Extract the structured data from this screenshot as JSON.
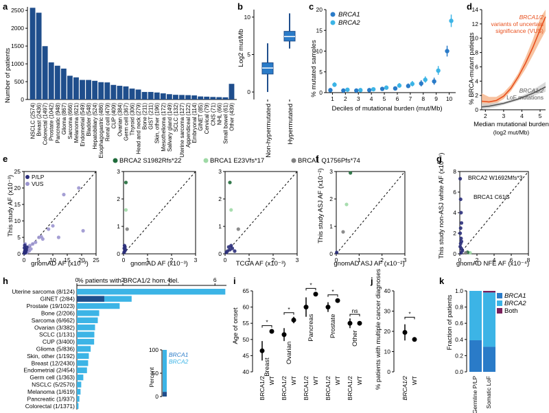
{
  "colors": {
    "dark": "#1f4e8c",
    "mid": "#2a7bc8",
    "light": "#3cb4e6",
    "orange": "#e8501e",
    "orange_band": "#f6b489",
    "gray": "#555555",
    "gray_band": "#d0d0d0",
    "purple": "#7a1f5c",
    "vus": "#9b95cf",
    "plp": "#2a2e7a",
    "green_dark": "#1f6b3a",
    "green_light": "#9fd9a6",
    "gray_dot": "#808080"
  },
  "chart_data": [
    {
      "panel": "a",
      "type": "bar",
      "ylabel": "Number of patients",
      "ylim": [
        0,
        2500
      ],
      "yticks": [
        0,
        500,
        1000,
        1500,
        2000,
        2500
      ],
      "categories": [
        "NSCLC (2574)",
        "Breast (2436)",
        "Colorectal (1497)",
        "Prostate (1042)",
        "Pancreatic (948)",
        "Glioma (867)",
        "Sarcoma (666)",
        "Melanoma (621)",
        "Endometrial (549)",
        "Bladder (548)",
        "Hepatobiliary (524)",
        "Esophagogastric (486)",
        "Renal cell (479)",
        "CUP (409)",
        "Ovarian (384)",
        "Germ cell (367)",
        "Thyroid (306)",
        "Head and neck (279)",
        "Bone (211)",
        "GIST (211)",
        "Skin, other (196)",
        "Mesothelioma (172)",
        "Salivary gland (149)",
        "SCLC (132)",
        "Uterine sarcoma (127)",
        "Appendiceal (122)",
        "Embryonal (114)",
        "GINET (85)",
        "Cervical (79)",
        "CNS (71)",
        "NHL (66)",
        "Small bowel (61)",
        "Other (439)"
      ],
      "values": [
        2574,
        2436,
        1497,
        1042,
        948,
        867,
        666,
        621,
        549,
        548,
        524,
        486,
        479,
        409,
        384,
        367,
        306,
        279,
        211,
        211,
        196,
        172,
        149,
        132,
        127,
        122,
        114,
        85,
        79,
        71,
        66,
        61,
        439
      ]
    },
    {
      "panel": "b",
      "type": "box",
      "ylabel": "Log2 mut/Mb",
      "yticks": [
        0,
        5,
        10
      ],
      "ylim": [
        -1,
        11
      ],
      "categories": [
        "Non-hypermutated",
        "Hypermutated"
      ],
      "boxes": [
        {
          "whisker_low": 0,
          "q1": 2.4,
          "median": 3.2,
          "q3": 3.9,
          "whisker_high": 6.5
        },
        {
          "whisker_low": 5.8,
          "q1": 6.8,
          "median": 7.4,
          "q3": 8.1,
          "whisker_high": 10.5
        }
      ]
    },
    {
      "panel": "c",
      "type": "scatter",
      "xlabel": "Deciles of mutational burden (mut/Mb)",
      "ylabel": "% mutated samples",
      "xlim": [
        0.5,
        10.5
      ],
      "ylim": [
        0,
        20
      ],
      "yticks": [
        0,
        5,
        10,
        15,
        20
      ],
      "xticks": [
        1,
        2,
        3,
        4,
        5,
        6,
        7,
        8,
        9,
        10
      ],
      "series": [
        {
          "name": "BRCA1",
          "x": [
            1,
            2,
            3,
            4,
            5,
            6,
            7,
            8,
            9,
            10
          ],
          "y": [
            0.6,
            0.5,
            0.5,
            0.6,
            0.9,
            1.0,
            1.6,
            2.2,
            2.7,
            10.0
          ]
        },
        {
          "name": "BRCA2",
          "x": [
            1,
            2,
            3,
            4,
            5,
            6,
            7,
            8,
            9,
            10
          ],
          "y": [
            1.9,
            0.7,
            0.6,
            0.8,
            1.2,
            1.7,
            2.1,
            3.1,
            5.3,
            17.3
          ]
        }
      ],
      "errors": [
        {
          "name": "BRCA1",
          "lo": [
            0.3,
            0.2,
            0.2,
            0.3,
            0.5,
            0.6,
            1.1,
            1.5,
            1.9,
            8.7
          ],
          "hi": [
            0.9,
            0.8,
            0.8,
            0.9,
            1.3,
            1.5,
            2.2,
            3.0,
            3.6,
            11.3
          ]
        },
        {
          "name": "BRCA2",
          "lo": [
            1.4,
            0.4,
            0.3,
            0.5,
            0.8,
            1.2,
            1.5,
            2.4,
            4.3,
            15.8
          ],
          "hi": [
            2.5,
            1.1,
            1.0,
            1.2,
            1.7,
            2.3,
            2.8,
            3.9,
            6.4,
            18.8
          ]
        }
      ]
    },
    {
      "panel": "d",
      "type": "line",
      "xlabel": "Median mutational burden",
      "xlabel2": "(log2 mut/Mb)",
      "ylabel": "% BRCA-mutant patients",
      "xlim": [
        1.8,
        5.3
      ],
      "ylim": [
        0,
        14
      ],
      "xticks": [
        2,
        3,
        4,
        5
      ],
      "yticks": [
        0,
        2,
        4,
        6,
        8,
        10,
        12,
        14
      ],
      "series": [
        {
          "name": "BRCA1/2 variants of uncertain significance (VUS)",
          "x": [
            1.8,
            2.2,
            2.6,
            3.0,
            3.4,
            3.8,
            4.2,
            4.6,
            5.0,
            5.3
          ],
          "y": [
            1.2,
            1.1,
            1.3,
            1.9,
            3.0,
            4.6,
            6.5,
            8.7,
            11.2,
            13.0
          ],
          "lo": [
            0.5,
            0.6,
            0.9,
            1.5,
            2.6,
            4.1,
            5.7,
            7.6,
            9.6,
            11.0
          ],
          "hi": [
            2.3,
            1.8,
            1.8,
            2.4,
            3.5,
            5.1,
            7.3,
            9.8,
            12.8,
            14.0
          ]
        },
        {
          "name": "BRCA1/2 LoF mutations",
          "x": [
            1.8,
            2.2,
            2.6,
            3.0,
            3.4,
            3.8,
            4.2,
            4.6,
            5.0,
            5.3
          ],
          "y": [
            0.4,
            0.5,
            0.7,
            0.9,
            1.2,
            1.5,
            1.9,
            2.3,
            2.8,
            3.2
          ],
          "lo": [
            0.1,
            0.2,
            0.4,
            0.7,
            1.0,
            1.3,
            1.6,
            1.9,
            2.3,
            2.5
          ],
          "hi": [
            0.9,
            0.9,
            1.0,
            1.1,
            1.4,
            1.7,
            2.2,
            2.8,
            3.4,
            3.9
          ]
        }
      ],
      "legend": {
        "vus_1": "BRCA1/2",
        "vus_2": "variants of uncertain",
        "vus_3": "significance (VUS)",
        "lof_1": "BRCA1/2",
        "lof_2": "LoF mutations"
      }
    },
    {
      "panel": "e1",
      "type": "scatter",
      "xlabel": "gnomAD AF (x10⁻³)",
      "ylabel": "This study AF (x10⁻³)",
      "xlim": [
        0,
        25
      ],
      "ylim": [
        0,
        25
      ],
      "xticks": [
        0,
        5,
        10,
        15,
        20,
        25
      ],
      "yticks": [
        0,
        5,
        10,
        15,
        20,
        25
      ],
      "legend": [
        "P/LP",
        "VUS"
      ],
      "series": [
        {
          "name": "VUS",
          "x": [
            0.2,
            0.5,
            0.8,
            1.0,
            1.3,
            1.6,
            2.0,
            2.4,
            3.0,
            4.0,
            5.2,
            6.5,
            6.0,
            13.8,
            19.0,
            20.5,
            12.0,
            10.0,
            8.5,
            0.3,
            0.6,
            1.1,
            1.8,
            0.4
          ],
          "y": [
            0.5,
            1.0,
            1.5,
            0.8,
            2.0,
            1.2,
            2.5,
            1.5,
            3.0,
            3.5,
            5.0,
            4.5,
            5.2,
            18.0,
            20.0,
            7.0,
            5.0,
            8.5,
            7.5,
            2.0,
            0.3,
            0.5,
            0.9,
            3.0
          ]
        },
        {
          "name": "P/LP",
          "x": [
            0.1,
            0.2,
            0.3,
            0.4,
            0.5,
            0.6,
            0.8,
            1.0,
            0.15,
            0.25,
            0.35,
            0.45
          ],
          "y": [
            0.2,
            0.5,
            0.8,
            1.0,
            1.5,
            0.6,
            1.2,
            2.0,
            1.8,
            2.6,
            1.0,
            0.3
          ]
        }
      ]
    },
    {
      "panel": "e2",
      "type": "scatter",
      "xlabel": "gnomAD AF (x10⁻³)",
      "xlim": [
        0,
        3
      ],
      "ylim": [
        0,
        3
      ],
      "xticks": [
        0,
        1,
        2,
        3
      ],
      "yticks": [
        0,
        1,
        2,
        3
      ],
      "series": [
        {
          "name": "BRCA2 S1982Rfs*22",
          "x": [
            0.1
          ],
          "y": [
            2.6
          ]
        },
        {
          "name": "BRCA1 E23Vfs*17",
          "x": [
            0.1
          ],
          "y": [
            1.6
          ]
        },
        {
          "name": "BRCA1 Q1756Pfs*74",
          "x": [
            0.15
          ],
          "y": [
            0.9
          ]
        },
        {
          "name": "P/LP",
          "x": [
            0.02,
            0.05,
            0.08,
            0.03,
            0.06,
            0.04
          ],
          "y": [
            0.05,
            0.1,
            0.15,
            0.2,
            0.25,
            0.3
          ]
        }
      ]
    },
    {
      "panel": "e3",
      "type": "scatter",
      "xlabel": "TCGA AF (x10⁻³)",
      "xlim": [
        0,
        3
      ],
      "ylim": [
        0,
        3
      ],
      "xticks": [
        0,
        1,
        2,
        3
      ],
      "yticks": [
        0,
        1,
        2,
        3
      ],
      "series": [
        {
          "name": "BRCA2 S1982Rfs*22",
          "x": [
            0.2
          ],
          "y": [
            2.6
          ]
        },
        {
          "name": "BRCA1 E23Vfs*17",
          "x": [
            0.25
          ],
          "y": [
            1.6
          ]
        },
        {
          "name": "BRCA1 Q1756Pfs*74",
          "x": [
            0.55
          ],
          "y": [
            0.9
          ]
        },
        {
          "name": "P/LP",
          "x": [
            0.05,
            0.1,
            0.2,
            0.3,
            0.4,
            0.15,
            0.25
          ],
          "y": [
            0.05,
            0.1,
            0.15,
            0.2,
            0.1,
            0.25,
            0.3
          ]
        }
      ]
    },
    {
      "panel": "f",
      "type": "scatter",
      "xlabel": "gnomAD ASJ AF (x10⁻²)",
      "ylabel": "This study ASJ AF (x10⁻²)",
      "xlim": [
        0,
        3
      ],
      "ylim": [
        0,
        3
      ],
      "xticks": [
        0,
        1,
        2,
        3
      ],
      "yticks": [
        0,
        1,
        2,
        3
      ],
      "series": [
        {
          "name": "BRCA2 S1982Rfs*22",
          "x": [
            0.62
          ],
          "y": [
            2.95
          ]
        },
        {
          "name": "BRCA1 E23Vfs*17",
          "x": [
            0.45
          ],
          "y": [
            1.8
          ]
        },
        {
          "name": "BRCA1 Q1756Pfs*74",
          "x": [
            0.3
          ],
          "y": [
            0.8
          ]
        },
        {
          "name": "P/LP",
          "x": [
            0.02
          ],
          "y": [
            0.05
          ]
        }
      ]
    },
    {
      "panel": "g",
      "type": "scatter",
      "xlabel": "gnomAD NFE AF (x10⁻⁴)",
      "ylabel": "This study non-ASJ white AF (x10⁻⁴)",
      "xlim": [
        0,
        8
      ],
      "ylim": [
        0,
        8
      ],
      "xticks": [
        0,
        2,
        4,
        6,
        8
      ],
      "yticks": [
        0,
        2,
        4,
        6,
        8
      ],
      "annotations": [
        "BRCA2 W1692Mfs*3",
        "BRCA1 C61G"
      ],
      "series": [
        {
          "name": "P/LP",
          "x": [
            0.05,
            0.1,
            0.15,
            0.2,
            0.1,
            0.05,
            0.15,
            0.2,
            0.1,
            0.05,
            0.2,
            0.3,
            0.15
          ],
          "y": [
            7.3,
            5.3,
            4.0,
            3.0,
            2.5,
            2.0,
            1.5,
            1.2,
            1.0,
            0.7,
            0.5,
            0.3,
            0.1
          ]
        },
        {
          "name": "BRCA1 E23Vfs*17",
          "x": [
            1.2
          ],
          "y": [
            0.1
          ]
        },
        {
          "name": "BRCA2 S1982Rfs*22",
          "x": [
            0.9
          ],
          "y": [
            0.15
          ]
        },
        {
          "name": "BRCA1 Q1756Pfs*74",
          "x": [
            0.7
          ],
          "y": [
            0.1
          ]
        }
      ]
    },
    {
      "panel": "h",
      "type": "bar",
      "title": "% patients with BRCA1/2 hom. del.",
      "xlim": [
        0,
        6.5
      ],
      "xticks": [
        0,
        2,
        4,
        6
      ],
      "categories": [
        "Uterine sarcoma (8/124)",
        "GINET (2/84)",
        "Prostate (19/1023)",
        "Bone (2/206)",
        "Sarcoma (6/662)",
        "Ovarian (3/382)",
        "SCLC (1/131)",
        "CUP (3/400)",
        "Glioma (5/836)",
        "Skin, other (1/192)",
        "Breast (12/2430)",
        "Endometrial (2/454)",
        "Germ cell (1/363)",
        "NSCLC (5/2570)",
        "Melanoma (1/619)",
        "Pancreatic (1/937)",
        "Colorectal (1/1371)"
      ],
      "values": [
        6.45,
        2.38,
        1.86,
        0.97,
        0.91,
        0.79,
        0.76,
        0.75,
        0.6,
        0.52,
        0.49,
        0.44,
        0.28,
        0.19,
        0.16,
        0.11,
        0.07
      ],
      "brca1_values": [
        0.0,
        1.19,
        0.0,
        0.0,
        0.0,
        0.0,
        0.0,
        0.0,
        0.0,
        0.0,
        0.0,
        0.0,
        0.0,
        0.0,
        0.0,
        0.0,
        0.0
      ],
      "inset": {
        "ylabel": "Percent",
        "yticks": [
          0,
          50,
          100
        ],
        "series": [
          "BRCA1",
          "BRCA2"
        ],
        "values": [
          10,
          90
        ]
      }
    },
    {
      "panel": "i",
      "type": "dot",
      "ylabel": "Age of onset",
      "ylim": [
        40,
        65
      ],
      "yticks": [
        40,
        45,
        50,
        55,
        60,
        65
      ],
      "groups": [
        "Breast",
        "Ovarian",
        "Pancreas",
        "Prostate",
        "Other"
      ],
      "significance": [
        "*",
        "*",
        "*",
        "*",
        "ns"
      ],
      "categories": [
        "BRCA1/2",
        "WT"
      ],
      "brca": [
        46.5,
        51.5,
        60.0,
        60.0,
        55.0
      ],
      "brca_lo": [
        43.5,
        49.5,
        57.0,
        58.5,
        53.5
      ],
      "brca_hi": [
        49.5,
        53.5,
        63.0,
        61.5,
        56.5
      ],
      "wt": [
        52.5,
        56.0,
        64.0,
        62.0,
        55.0
      ],
      "wt_lo": [
        52.0,
        55.0,
        63.5,
        61.5,
        54.5
      ],
      "wt_hi": [
        53.0,
        57.0,
        64.5,
        62.5,
        55.5
      ]
    },
    {
      "panel": "j",
      "type": "dot",
      "ylabel": "% patients with multiple cancer diagnoses",
      "ylim": [
        0,
        40
      ],
      "yticks": [
        0,
        10,
        20,
        30,
        40
      ],
      "categories": [
        "BRCA1/2",
        "WT"
      ],
      "values": [
        19.5,
        16.0
      ],
      "lo": [
        15.5,
        15.5
      ],
      "hi": [
        23.5,
        16.5
      ],
      "significance": "*"
    },
    {
      "panel": "k",
      "type": "stacked_bar",
      "ylabel": "Fraction of patients",
      "ylim": [
        0,
        1
      ],
      "yticks": [
        0,
        0.2,
        0.4,
        0.6,
        0.8,
        1.0
      ],
      "categories": [
        "Germline P/LP",
        "Somatic LoF"
      ],
      "series": [
        {
          "name": "BRCA1",
          "values": [
            0.39,
            0.31
          ]
        },
        {
          "name": "BRCA2",
          "values": [
            0.61,
            0.67
          ]
        },
        {
          "name": "Both",
          "values": [
            0.0,
            0.02
          ]
        }
      ]
    }
  ],
  "panel_labels": [
    "a",
    "b",
    "c",
    "d",
    "e",
    "f",
    "g",
    "h",
    "i",
    "j",
    "k"
  ]
}
